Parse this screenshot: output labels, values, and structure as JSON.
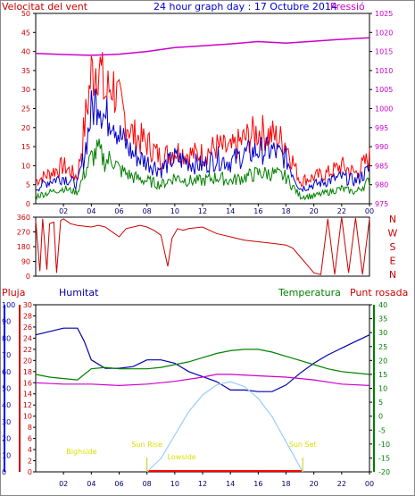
{
  "chart_data": [
    {
      "type": "line",
      "title": "24 hour graph day : 17 Octubre 2014",
      "x_ticks": [
        "02",
        "04",
        "06",
        "08",
        "10",
        "12",
        "14",
        "16",
        "18",
        "20",
        "22",
        "00"
      ],
      "left_axis": {
        "label": "Velocitat del vent",
        "ticks": [
          "0",
          "5",
          "10",
          "15",
          "20",
          "25",
          "30",
          "35",
          "40",
          "45",
          "50"
        ],
        "range": [
          0,
          50
        ]
      },
      "right_axis": {
        "label": "Pressió",
        "ticks": [
          "975",
          "980",
          "985",
          "990",
          "995",
          "1000",
          "1005",
          "1010",
          "1015",
          "1020",
          "1025"
        ],
        "range": [
          975,
          1025
        ]
      },
      "series": [
        {
          "color": "#ff0000",
          "hours": [
            0,
            1,
            2,
            3,
            3.5,
            4,
            4.5,
            5,
            5.5,
            6,
            7,
            8,
            9,
            10,
            11,
            12,
            13,
            14,
            15,
            16,
            17,
            18,
            19,
            20,
            21,
            22,
            23,
            24
          ],
          "values": [
            6,
            8,
            10,
            7,
            20,
            34,
            38,
            28,
            32,
            26,
            18,
            16,
            12,
            14,
            13,
            13,
            15,
            14,
            17,
            19,
            18,
            16,
            6,
            7,
            8,
            10,
            8,
            12
          ]
        },
        {
          "color": "#0000cc",
          "hours": [
            0,
            1,
            2,
            3,
            3.5,
            4,
            4.5,
            5,
            5.5,
            6,
            7,
            8,
            9,
            10,
            11,
            12,
            13,
            14,
            15,
            16,
            17,
            18,
            19,
            20,
            21,
            22,
            23,
            24
          ],
          "values": [
            4,
            6,
            7,
            5,
            13,
            24,
            29,
            22,
            24,
            18,
            13,
            11,
            9,
            12,
            11,
            10,
            12,
            11,
            13,
            14,
            14,
            12,
            4,
            5,
            6,
            7,
            6,
            9
          ]
        },
        {
          "color": "#008000",
          "hours": [
            0,
            1,
            2,
            3,
            3.5,
            4,
            4.5,
            5,
            5.5,
            6,
            7,
            8,
            9,
            10,
            11,
            12,
            13,
            14,
            15,
            16,
            17,
            18,
            19,
            20,
            21,
            22,
            23,
            24
          ],
          "values": [
            2,
            3,
            4,
            3,
            8,
            12,
            14,
            11,
            12,
            9,
            7,
            6,
            5,
            7,
            6,
            6,
            7,
            6,
            7,
            8,
            8,
            7,
            2,
            2,
            3,
            4,
            3,
            6
          ]
        },
        {
          "color": "#cc00cc",
          "axis": "right",
          "hours": [
            0,
            2,
            4,
            6,
            8,
            10,
            12,
            14,
            16,
            18,
            20,
            22,
            24
          ],
          "values": [
            1014.5,
            1014.2,
            1014.0,
            1014.3,
            1015.0,
            1016.0,
            1016.5,
            1017.0,
            1017.6,
            1017.2,
            1017.7,
            1018.2,
            1018.6
          ]
        }
      ]
    },
    {
      "type": "line",
      "right_labels": [
        "N",
        "W",
        "S",
        "E",
        "N"
      ],
      "left_axis": {
        "ticks": [
          "0",
          "90",
          "180",
          "270",
          "360"
        ],
        "range": [
          0,
          360
        ]
      },
      "series": [
        {
          "color": "#cc0000",
          "hours": [
            0,
            0.3,
            0.5,
            0.8,
            1.0,
            1.3,
            1.5,
            1.8,
            2.0,
            2.5,
            3.0,
            4.0,
            4.5,
            5.0,
            6.0,
            6.5,
            7.0,
            7.5,
            8.0,
            8.5,
            9.0,
            9.5,
            9.8,
            10.2,
            10.6,
            11.0,
            12.0,
            12.5,
            13.0,
            14.0,
            15.0,
            16.0,
            17.0,
            18.0,
            18.5,
            19.0,
            19.5,
            20.0,
            20.5,
            21.0,
            21.5,
            22.0,
            22.5,
            23.0,
            23.5,
            24.0
          ],
          "values": [
            340,
            30,
            350,
            40,
            320,
            330,
            20,
            340,
            350,
            320,
            310,
            300,
            310,
            300,
            240,
            290,
            300,
            310,
            300,
            280,
            250,
            60,
            230,
            290,
            280,
            290,
            300,
            280,
            260,
            240,
            220,
            210,
            200,
            190,
            170,
            120,
            70,
            20,
            10,
            350,
            10,
            360,
            20,
            355,
            10,
            350
          ]
        }
      ]
    },
    {
      "type": "line",
      "labels": {
        "rain": "Pluja",
        "humidity": "Humitat",
        "temperature": "Temperatura",
        "dew_point": "Punt rosada"
      },
      "x_ticks": [
        "02",
        "04",
        "06",
        "08",
        "10",
        "12",
        "14",
        "16",
        "18",
        "20",
        "22",
        "00"
      ],
      "humidity_axis": {
        "ticks": [
          "0",
          "10",
          "20",
          "30",
          "40",
          "50",
          "60",
          "70",
          "80",
          "90",
          "100"
        ],
        "range": [
          0,
          100
        ]
      },
      "rain_axis": {
        "ticks": [
          "0",
          "2",
          "4",
          "6",
          "8",
          "10",
          "12",
          "14",
          "16",
          "18",
          "20",
          "22",
          "24",
          "26",
          "28",
          "30"
        ],
        "range": [
          0,
          30
        ]
      },
      "temperature_axis": {
        "ticks": [
          "-20",
          "-15",
          "-10",
          "-5",
          "0",
          "5",
          "10",
          "15",
          "20",
          "25",
          "30",
          "35",
          "40"
        ],
        "range": [
          -20,
          40
        ]
      },
      "annotations": [
        {
          "text": "Sun Rise",
          "hour": 8.0
        },
        {
          "text": "Sun Set",
          "hour": 19.2
        },
        {
          "text": "Bighside",
          "hour": 3.3
        },
        {
          "text": "Lowside",
          "hour": 10.5
        }
      ],
      "series": [
        {
          "color": "#0000aa",
          "axis": "humidity",
          "hours": [
            0,
            1,
            2,
            3,
            3.5,
            4,
            5,
            6,
            7,
            8,
            9,
            10,
            11,
            12,
            13,
            14,
            15,
            16,
            17,
            18,
            19,
            20,
            21,
            22,
            23,
            24
          ],
          "values": [
            82,
            84,
            86,
            86,
            78,
            67,
            62,
            62,
            63,
            67,
            67,
            65,
            60,
            57,
            54,
            49,
            49,
            48,
            48,
            52,
            59,
            65,
            70,
            74,
            78,
            82
          ]
        },
        {
          "color": "#008000",
          "axis": "temperature",
          "hours": [
            0,
            1,
            2,
            3,
            3.5,
            4,
            5,
            6,
            7,
            8,
            9,
            10,
            11,
            12,
            13,
            14,
            15,
            16,
            17,
            18,
            19,
            20,
            21,
            22,
            23,
            24
          ],
          "values": [
            15,
            14,
            13.5,
            13,
            15,
            17,
            17.5,
            17,
            17,
            17,
            17.5,
            18.5,
            19.5,
            21,
            22.5,
            23.5,
            24,
            24,
            23,
            21.5,
            20,
            18.5,
            17,
            16,
            15.5,
            15
          ]
        },
        {
          "color": "#cc00cc",
          "axis": "temperature",
          "hours": [
            0,
            2,
            4,
            6,
            8,
            10,
            12,
            13,
            14,
            16,
            18,
            20,
            22,
            24
          ],
          "values": [
            12,
            11.5,
            11.5,
            11,
            11.5,
            12.5,
            14,
            15,
            15,
            14.5,
            14,
            13,
            11.5,
            11
          ]
        },
        {
          "color": "#99ccff",
          "axis": "solar",
          "hours": [
            8,
            9,
            10,
            11,
            12,
            13,
            14,
            15,
            16,
            17,
            18,
            19,
            19.2
          ],
          "values": [
            0,
            8,
            22,
            36,
            46,
            52,
            54,
            51,
            44,
            33,
            18,
            3,
            0
          ]
        }
      ]
    }
  ]
}
